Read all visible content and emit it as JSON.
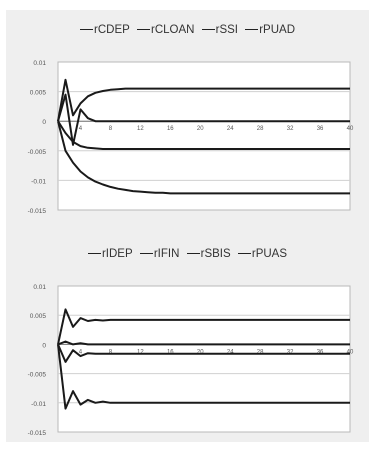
{
  "chart_data": [
    {
      "type": "line",
      "series": [
        {
          "name": "rCDEP",
          "values": [
            0,
            0.0045,
            -0.004,
            0.002,
            0.0005,
            0,
            0,
            0,
            0,
            0,
            0,
            0,
            0,
            0,
            0,
            0,
            0,
            0,
            0,
            0,
            0,
            0,
            0,
            0,
            0,
            0,
            0,
            0,
            0,
            0,
            0,
            0,
            0,
            0,
            0,
            0,
            0,
            0,
            0,
            0
          ]
        },
        {
          "name": "rCLOAN",
          "values": [
            0,
            0.007,
            0.001,
            0.003,
            0.0042,
            0.0048,
            0.0051,
            0.0053,
            0.0054,
            0.0055,
            0.0055,
            0.0055,
            0.0055,
            0.0055,
            0.0055,
            0.0055,
            0.0055,
            0.0055,
            0.0055,
            0.0055,
            0.0055,
            0.0055,
            0.0055,
            0.0055,
            0.0055,
            0.0055,
            0.0055,
            0.0055,
            0.0055,
            0.0055,
            0.0055,
            0.0055,
            0.0055,
            0.0055,
            0.0055,
            0.0055,
            0.0055,
            0.0055,
            0.0055,
            0.0055
          ]
        },
        {
          "name": "rSSI",
          "values": [
            0,
            -0.002,
            -0.0035,
            -0.0042,
            -0.0045,
            -0.0046,
            -0.0047,
            -0.0047,
            -0.0047,
            -0.0047,
            -0.0047,
            -0.0047,
            -0.0047,
            -0.0047,
            -0.0047,
            -0.0047,
            -0.0047,
            -0.0047,
            -0.0047,
            -0.0047,
            -0.0047,
            -0.0047,
            -0.0047,
            -0.0047,
            -0.0047,
            -0.0047,
            -0.0047,
            -0.0047,
            -0.0047,
            -0.0047,
            -0.0047,
            -0.0047,
            -0.0047,
            -0.0047,
            -0.0047,
            -0.0047,
            -0.0047,
            -0.0047,
            -0.0047,
            -0.0047
          ]
        },
        {
          "name": "rPUAD",
          "values": [
            0,
            -0.005,
            -0.007,
            -0.0085,
            -0.0095,
            -0.0102,
            -0.0107,
            -0.0111,
            -0.0114,
            -0.0116,
            -0.0118,
            -0.0119,
            -0.012,
            -0.0121,
            -0.0121,
            -0.0122,
            -0.0122,
            -0.0122,
            -0.0122,
            -0.0122,
            -0.0122,
            -0.0122,
            -0.0122,
            -0.0122,
            -0.0122,
            -0.0122,
            -0.0122,
            -0.0122,
            -0.0122,
            -0.0122,
            -0.0122,
            -0.0122,
            -0.0122,
            -0.0122,
            -0.0122,
            -0.0122,
            -0.0122,
            -0.0122,
            -0.0122,
            -0.0122
          ]
        }
      ],
      "y_ticks": [
        "0.01",
        "0.005",
        "0",
        "-0.005",
        "-0.01",
        "-0.015"
      ],
      "x_ticks": [
        "4",
        "8",
        "12",
        "16",
        "20",
        "24",
        "28",
        "32",
        "36",
        "40"
      ],
      "ylim": [
        -0.015,
        0.01
      ],
      "grid": true,
      "legend": "top"
    },
    {
      "type": "line",
      "series": [
        {
          "name": "rIDEP",
          "values": [
            0,
            0.006,
            0.003,
            0.0045,
            0.004,
            0.0042,
            0.0041,
            0.0042,
            0.0042,
            0.0042,
            0.0042,
            0.0042,
            0.0042,
            0.0042,
            0.0042,
            0.0042,
            0.0042,
            0.0042,
            0.0042,
            0.0042,
            0.0042,
            0.0042,
            0.0042,
            0.0042,
            0.0042,
            0.0042,
            0.0042,
            0.0042,
            0.0042,
            0.0042,
            0.0042,
            0.0042,
            0.0042,
            0.0042,
            0.0042,
            0.0042,
            0.0042,
            0.0042,
            0.0042,
            0.0042
          ]
        },
        {
          "name": "rIFIN",
          "values": [
            0,
            -0.003,
            -0.001,
            -0.002,
            -0.0015,
            -0.0016,
            -0.0016,
            -0.0016,
            -0.0016,
            -0.0016,
            -0.0016,
            -0.0016,
            -0.0016,
            -0.0016,
            -0.0016,
            -0.0016,
            -0.0016,
            -0.0016,
            -0.0016,
            -0.0016,
            -0.0016,
            -0.0016,
            -0.0016,
            -0.0016,
            -0.0016,
            -0.0016,
            -0.0016,
            -0.0016,
            -0.0016,
            -0.0016,
            -0.0016,
            -0.0016,
            -0.0016,
            -0.0016,
            -0.0016,
            -0.0016,
            -0.0016,
            -0.0016,
            -0.0016,
            -0.0016
          ]
        },
        {
          "name": "rSBIS",
          "values": [
            0,
            0.0005,
            0,
            0.0002,
            0,
            0,
            0,
            0,
            0,
            0,
            0,
            0,
            0,
            0,
            0,
            0,
            0,
            0,
            0,
            0,
            0,
            0,
            0,
            0,
            0,
            0,
            0,
            0,
            0,
            0,
            0,
            0,
            0,
            0,
            0,
            0,
            0,
            0,
            0,
            0
          ]
        },
        {
          "name": "rPUAS",
          "values": [
            0,
            -0.011,
            -0.008,
            -0.0103,
            -0.0095,
            -0.01,
            -0.0098,
            -0.01,
            -0.01,
            -0.01,
            -0.01,
            -0.01,
            -0.01,
            -0.01,
            -0.01,
            -0.01,
            -0.01,
            -0.01,
            -0.01,
            -0.01,
            -0.01,
            -0.01,
            -0.01,
            -0.01,
            -0.01,
            -0.01,
            -0.01,
            -0.01,
            -0.01,
            -0.01,
            -0.01,
            -0.01,
            -0.01,
            -0.01,
            -0.01,
            -0.01,
            -0.01,
            -0.01,
            -0.01,
            -0.01
          ]
        }
      ],
      "y_ticks": [
        "0.01",
        "0.005",
        "0",
        "-0.005",
        "-0.01",
        "-0.015"
      ],
      "x_ticks": [
        "4",
        "8",
        "12",
        "16",
        "20",
        "24",
        "28",
        "32",
        "36",
        "40"
      ],
      "ylim": [
        -0.015,
        0.01
      ],
      "grid": true,
      "legend": "top"
    }
  ]
}
